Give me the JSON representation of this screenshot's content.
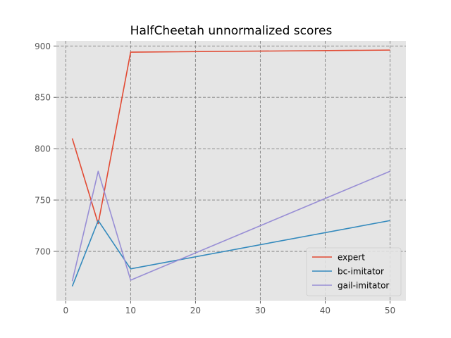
{
  "chart_data": {
    "type": "line",
    "title": "HalfCheetah unnormalized scores",
    "xlabel": "",
    "ylabel": "",
    "x": [
      1,
      5,
      10,
      50
    ],
    "xlim": [
      -1.45,
      52.45
    ],
    "ylim": [
      652,
      905
    ],
    "xticks": [
      0,
      10,
      20,
      30,
      40,
      50
    ],
    "yticks": [
      700,
      750,
      800,
      850,
      900
    ],
    "grid": true,
    "legend_position": "lower-right",
    "series": [
      {
        "name": "expert",
        "color": "#E24A33",
        "values": [
          810,
          727,
          894,
          896
        ]
      },
      {
        "name": "bc-imitator",
        "color": "#348ABD",
        "values": [
          666,
          730,
          683,
          730
        ]
      },
      {
        "name": "gail-imitator",
        "color": "#988ED5",
        "values": [
          671,
          778,
          672,
          778
        ]
      }
    ]
  }
}
